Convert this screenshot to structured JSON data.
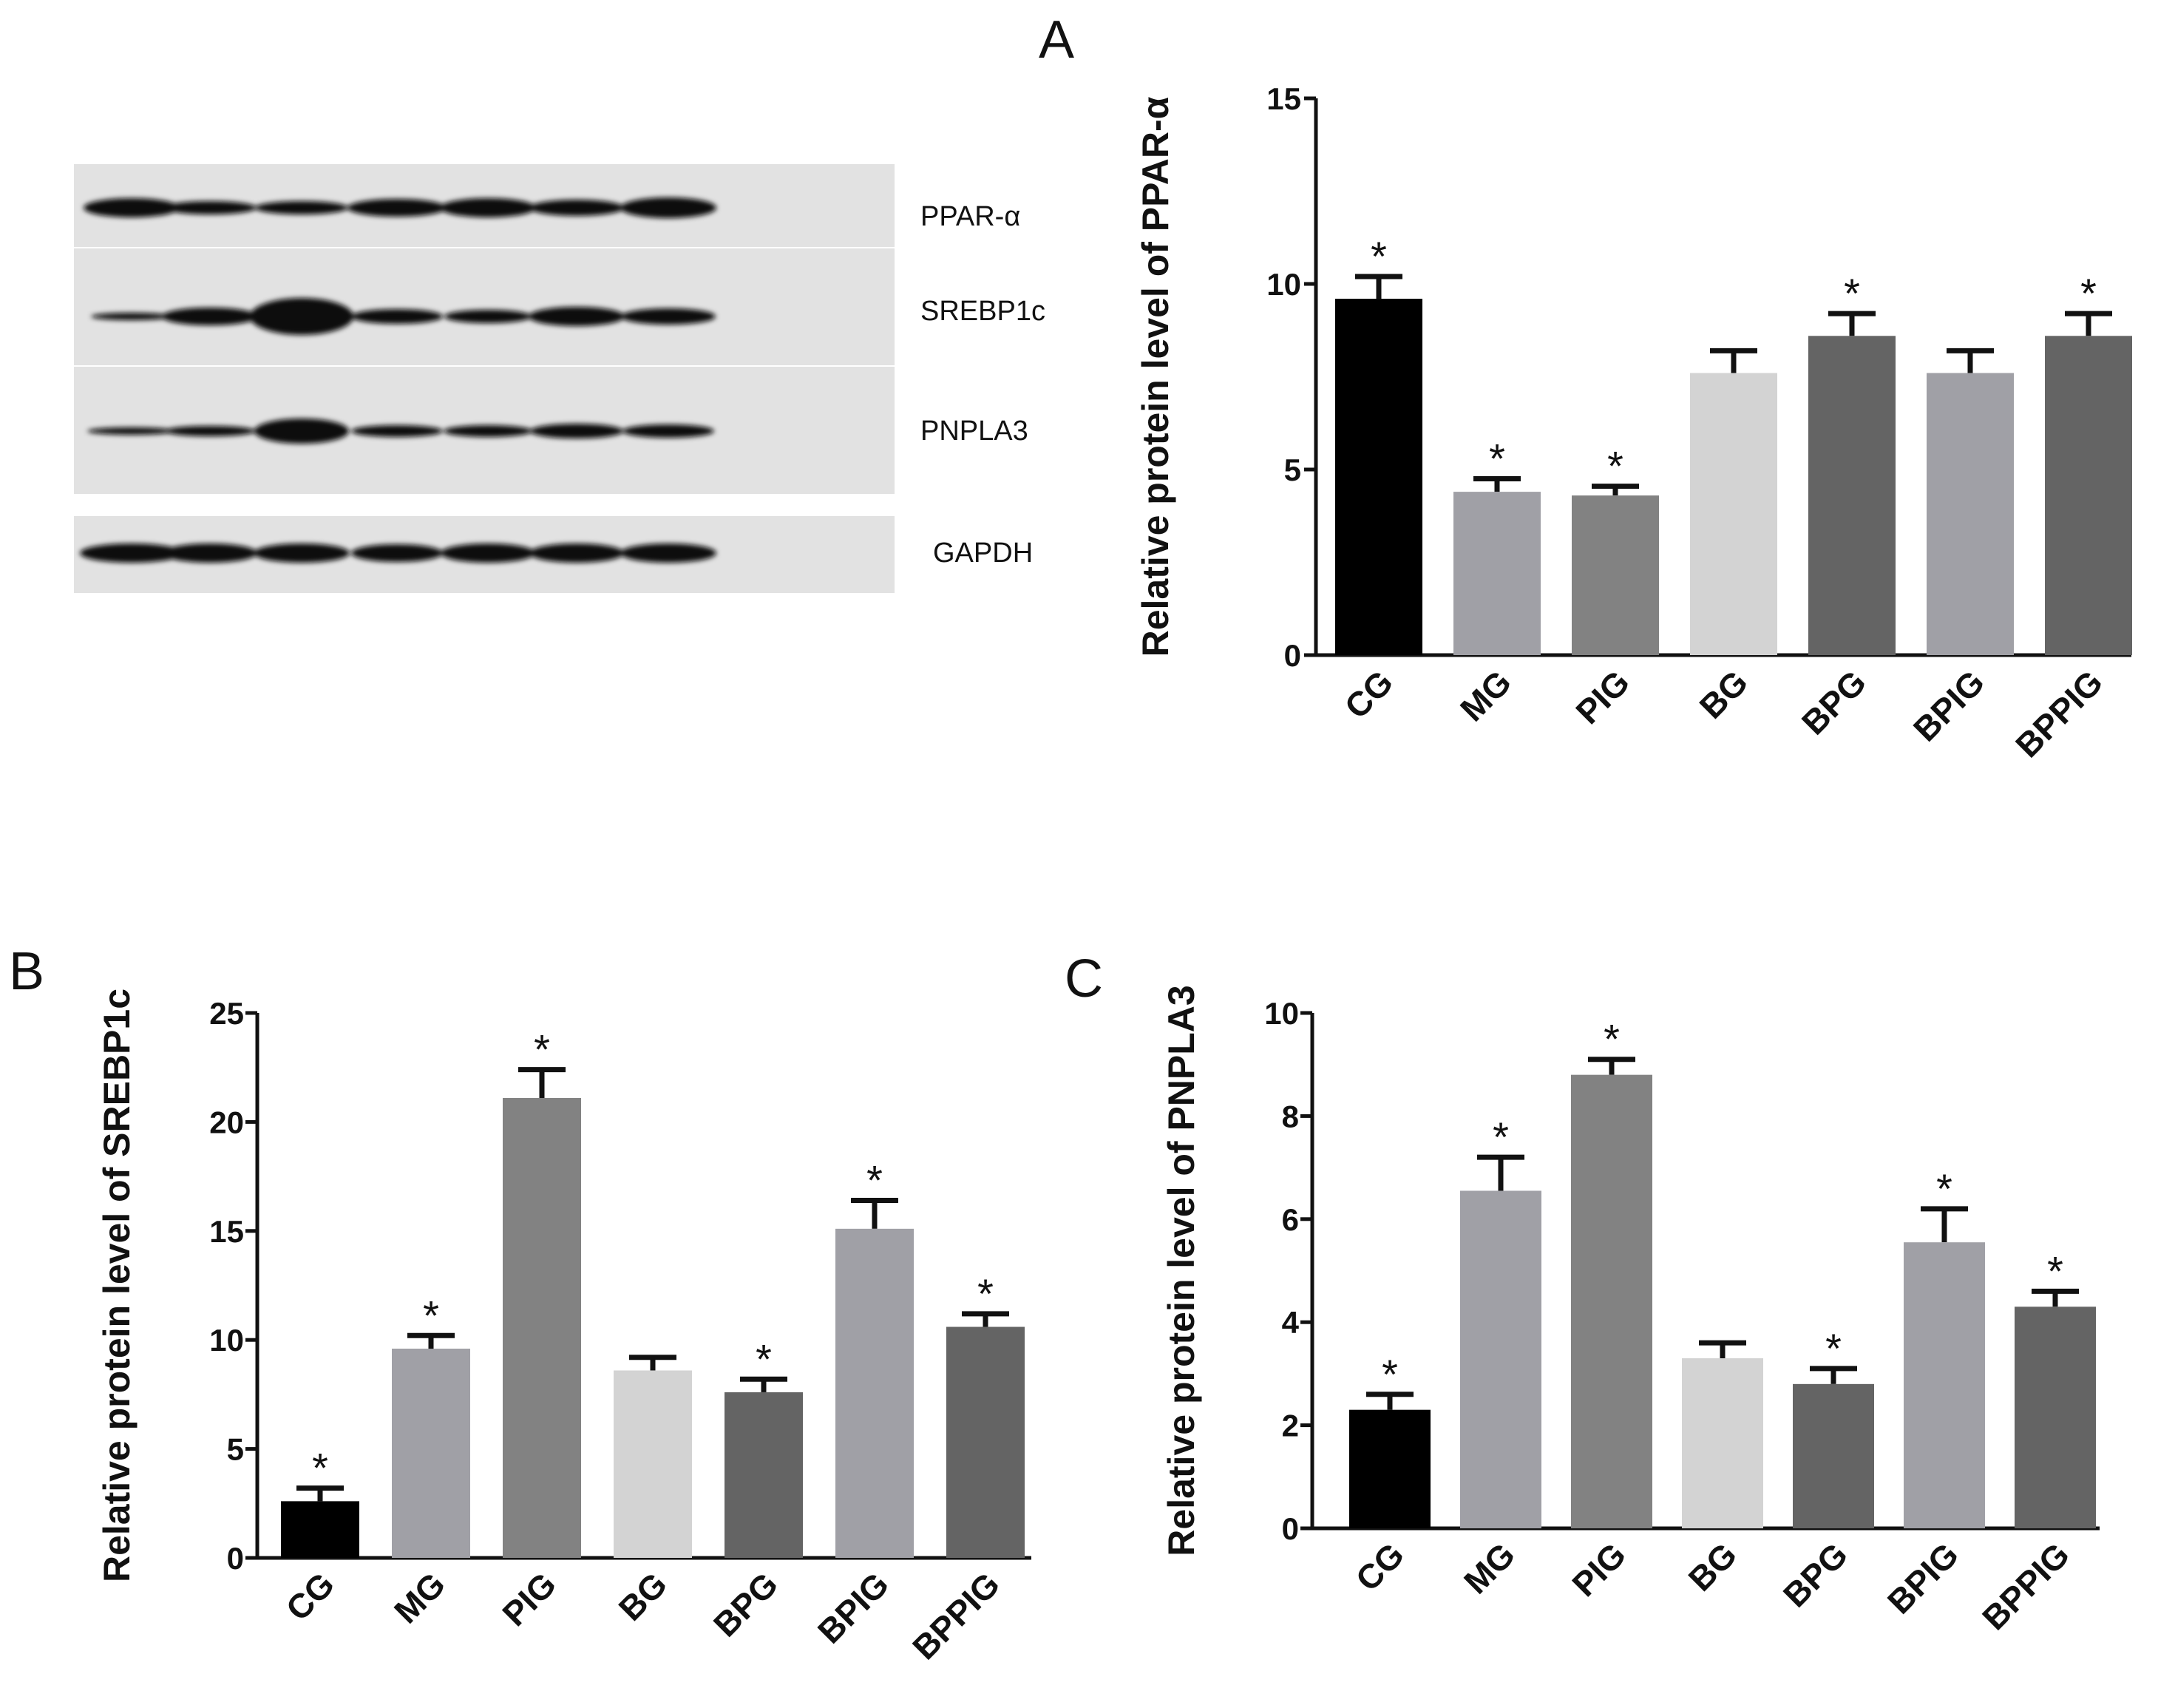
{
  "panel_letters": {
    "a": "A",
    "b": "B",
    "c": "C"
  },
  "blot": {
    "labels": [
      "PPAR-α",
      "SREBP1c",
      "PNPLA3",
      "GAPDH"
    ]
  },
  "chart_data": [
    {
      "id": "A",
      "type": "bar",
      "categories": [
        "CG",
        "MG",
        "PIG",
        "BG",
        "BPG",
        "BPIG",
        "BPPIG"
      ],
      "values": [
        9.6,
        4.4,
        4.3,
        7.6,
        8.6,
        7.6,
        8.6
      ],
      "errors": [
        0.6,
        0.35,
        0.25,
        0.6,
        0.6,
        0.6,
        0.6
      ],
      "significant": [
        true,
        true,
        true,
        false,
        true,
        false,
        true
      ],
      "colors": [
        "#000000",
        "#a0a0a6",
        "#828282",
        "#d3d3d3",
        "#646464",
        "#a0a0a6",
        "#646464"
      ],
      "ylabel": "Relative protein level of PPAR-α",
      "xlabel": "",
      "ylim": [
        0,
        15
      ],
      "yticks": [
        0,
        5,
        10,
        15
      ]
    },
    {
      "id": "B",
      "type": "bar",
      "categories": [
        "CG",
        "MG",
        "PIG",
        "BG",
        "BPG",
        "BPIG",
        "BPPIG"
      ],
      "values": [
        2.6,
        9.6,
        21.1,
        8.6,
        7.6,
        15.1,
        10.6
      ],
      "errors": [
        0.6,
        0.6,
        1.3,
        0.6,
        0.6,
        1.3,
        0.6
      ],
      "significant": [
        true,
        true,
        true,
        false,
        true,
        true,
        true
      ],
      "colors": [
        "#000000",
        "#a0a0a6",
        "#828282",
        "#d3d3d3",
        "#646464",
        "#a0a0a6",
        "#646464"
      ],
      "ylabel": "Relative protein level of SREBP1c",
      "xlabel": "",
      "ylim": [
        0,
        25
      ],
      "yticks": [
        0,
        5,
        10,
        15,
        20,
        25
      ]
    },
    {
      "id": "C",
      "type": "bar",
      "categories": [
        "CG",
        "MG",
        "PIG",
        "BG",
        "BPG",
        "BPIG",
        "BPPIG"
      ],
      "values": [
        2.3,
        6.55,
        8.8,
        3.3,
        2.8,
        5.55,
        4.3
      ],
      "errors": [
        0.3,
        0.65,
        0.3,
        0.3,
        0.3,
        0.65,
        0.3
      ],
      "significant": [
        true,
        true,
        true,
        false,
        true,
        true,
        true
      ],
      "colors": [
        "#000000",
        "#a0a0a6",
        "#828282",
        "#d3d3d3",
        "#646464",
        "#a0a0a6",
        "#646464"
      ],
      "ylabel": "Relative protein level of PNPLA3",
      "xlabel": "",
      "ylim": [
        0,
        10
      ],
      "yticks": [
        0,
        2,
        4,
        6,
        8,
        10
      ]
    }
  ],
  "star_symbol": "*"
}
